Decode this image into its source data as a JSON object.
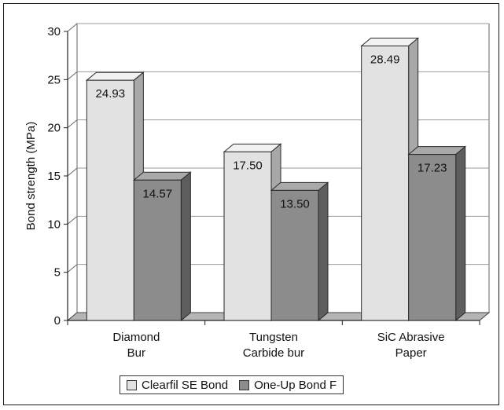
{
  "chart_data": {
    "type": "bar",
    "categories": [
      [
        "Diamond",
        "Bur"
      ],
      [
        "Tungsten",
        "Carbide bur"
      ],
      [
        "SiC Abrasive",
        "Paper"
      ]
    ],
    "series": [
      {
        "name": "Clearfil SE Bond",
        "values": [
          24.93,
          17.5,
          28.49
        ],
        "labels": [
          "24.93",
          "17.50",
          "28.49"
        ]
      },
      {
        "name": "One-Up Bond F",
        "values": [
          14.57,
          13.5,
          17.23
        ],
        "labels": [
          "14.57",
          "13.50",
          "17.23"
        ]
      }
    ],
    "ylabel": "Bond strength (MPa)",
    "ylim": [
      0,
      30
    ],
    "yticks": [
      "0",
      "5",
      "10",
      "15",
      "20",
      "25",
      "30"
    ],
    "grid": true,
    "legend_position": "bottom"
  },
  "colors": {
    "series1_front": "#e2e2e2",
    "series1_top": "#f2f2f2",
    "series1_side": "#a8a8a8",
    "series2_front": "#8c8c8c",
    "series2_top": "#a9a9a9",
    "series2_side": "#5e5e5e",
    "floor": "#b5b5b5"
  }
}
